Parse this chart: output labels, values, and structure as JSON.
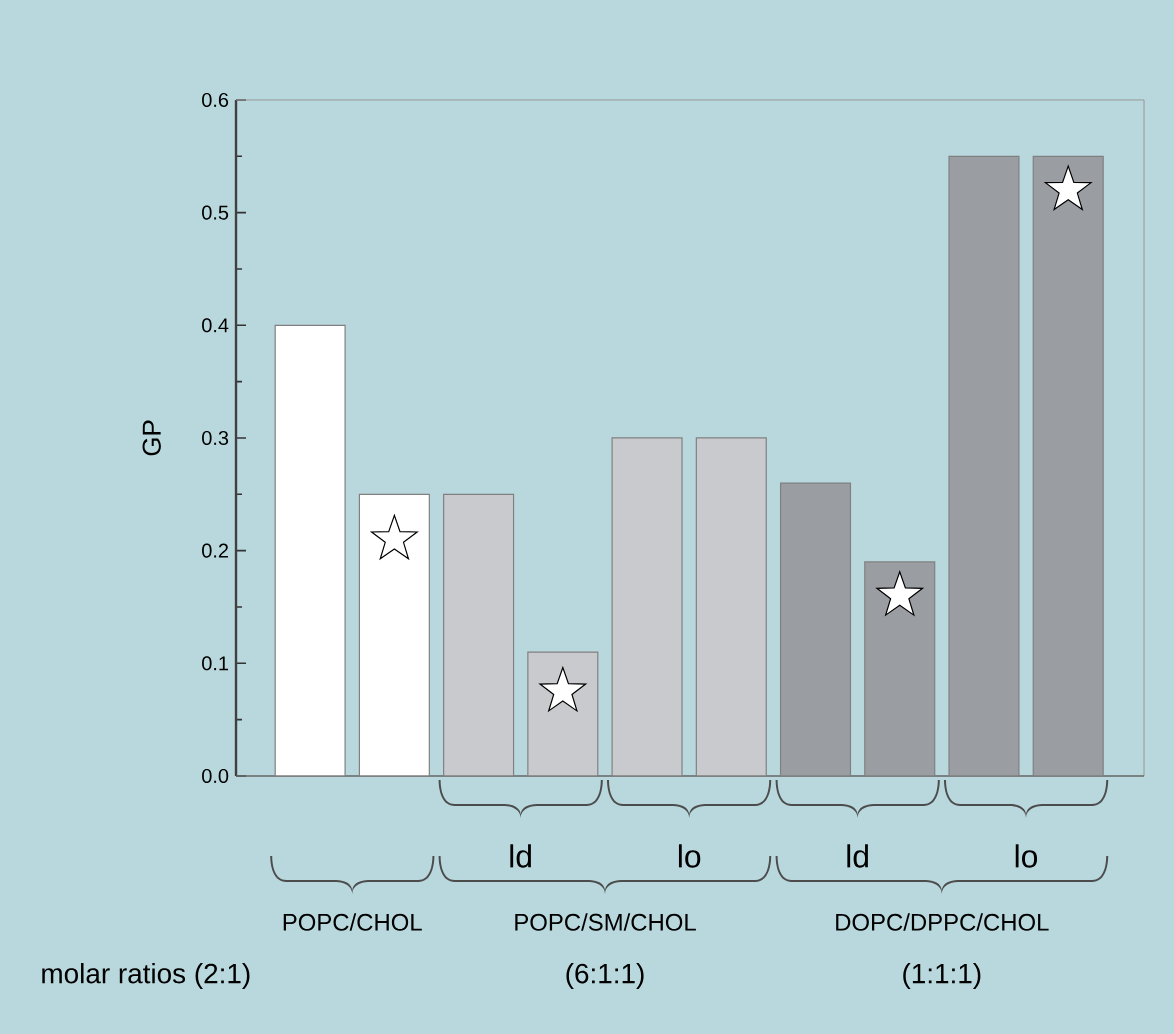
{
  "chart_data": {
    "type": "bar",
    "ylabel": "GP",
    "categories": [
      null,
      null,
      null,
      null,
      null,
      null,
      null,
      null,
      null,
      null
    ],
    "ylim": [
      0,
      0.6
    ],
    "yticks": [
      {
        "value": 0,
        "label": "0.0"
      },
      {
        "value": 0.1,
        "label": "0.1"
      },
      {
        "value": 0.2,
        "label": "0.2"
      },
      {
        "value": 0.3,
        "label": "0.3"
      },
      {
        "value": 0.4,
        "label": "0.4"
      },
      {
        "value": 0.5,
        "label": "0.5"
      },
      {
        "value": 0.6,
        "label": "0.6"
      }
    ],
    "series": [
      {
        "type": "bar",
        "colors": [
          "#ffffff",
          "#ffffff",
          "#c8cacd",
          "#c8cacd",
          "#c8cacd",
          "#c8cacd",
          "#9a9ea3",
          "#9a9ea3",
          "#9a9ea3",
          "#9a9ea3"
        ],
        "values": [
          0.4,
          0.25,
          0.25,
          0.11,
          0.3,
          0.3,
          0.26,
          0.19,
          0.55,
          0.55
        ]
      },
      {
        "type": "scatter",
        "marker": "star",
        "color": "#ffffff",
        "values": [
          null,
          0.21,
          null,
          0.075,
          null,
          null,
          null,
          0.16,
          null,
          0.52
        ]
      }
    ],
    "annotations": [
      "ld",
      "lo",
      "ld",
      "lo",
      "POPC/CHOL",
      "POPC/SM/CHOL",
      "DOPC/DPPC/CHOL",
      "molar ratios  (2:1)",
      "(6:1:1)",
      "(1:1:1)"
    ],
    "grid": false
  }
}
